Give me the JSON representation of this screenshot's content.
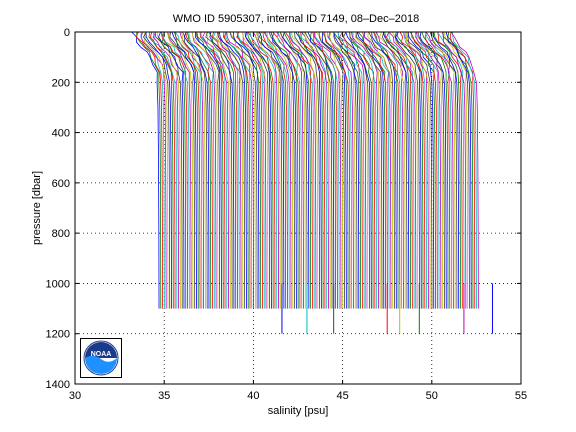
{
  "chart_data": {
    "type": "line",
    "title": "WMO ID 5905307, internal ID 7149, 08–Dec–2018",
    "xlabel": "salinity [psu]",
    "ylabel": "pressure [dbar]",
    "xlim": [
      30,
      55
    ],
    "ylim": [
      0,
      1400
    ],
    "y_reversed": true,
    "x_ticks": [
      "30",
      "35",
      "40",
      "45",
      "50",
      "55"
    ],
    "y_ticks": [
      "0",
      "200",
      "400",
      "600",
      "800",
      "1000",
      "1200",
      "1400"
    ],
    "grid": "dotted",
    "profile_offset_psu": 0.1,
    "n_profiles": 180,
    "base_profile": {
      "pressure": [
        0,
        20,
        40,
        60,
        80,
        100,
        130,
        160,
        200,
        300,
        500,
        800,
        1100
      ],
      "salinity": [
        33.3,
        33.35,
        33.5,
        33.75,
        34.0,
        34.2,
        34.4,
        34.55,
        34.6,
        34.65,
        34.68,
        34.7,
        34.71
      ]
    },
    "deep_profiles_at_psu": [
      41.6,
      43.0,
      44.5,
      47.5,
      48.2,
      49.3,
      51.8,
      53.4
    ],
    "deep_profile_max_pressure": 1200,
    "series_colors": [
      "#0000ff",
      "#008000",
      "#ff0000",
      "#00bfbf",
      "#bf00bf",
      "#bfbf00",
      "#404040"
    ]
  },
  "logo": {
    "text": "NOAA",
    "colors": {
      "sky": "#1a3a8a",
      "wave": "#1e90ff",
      "rim": "#ffffff"
    }
  }
}
